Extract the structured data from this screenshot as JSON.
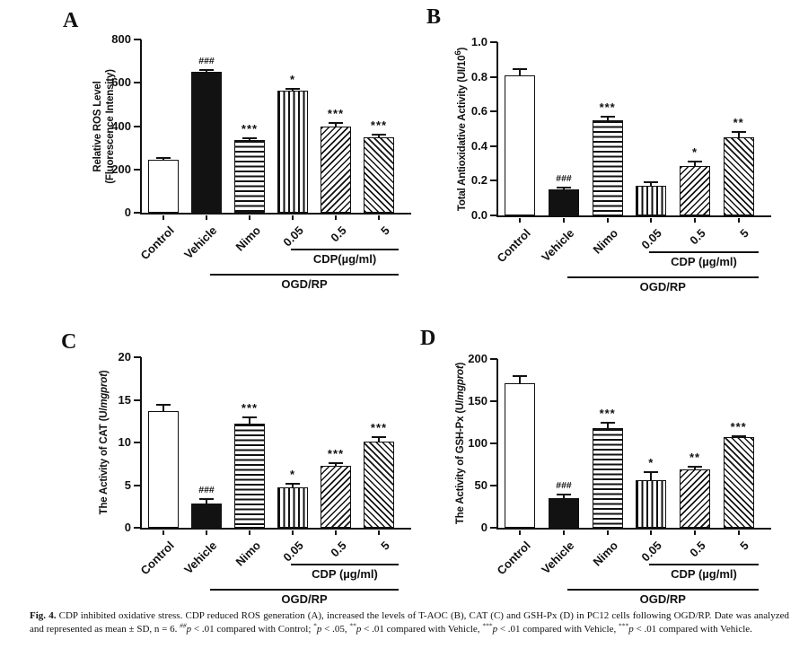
{
  "style": {
    "ink": "#111111",
    "background": "#ffffff"
  },
  "chart_data": [
    {
      "type": "bar",
      "panel": "A",
      "title": "",
      "xlabel": "",
      "ylabel_lines": [
        [
          {
            "t": "Relative ROS Level"
          }
        ],
        [
          {
            "t": "(Fluorescence Intensity)"
          }
        ]
      ],
      "ylim": [
        0,
        800
      ],
      "yticks": [
        0,
        200,
        400,
        600,
        800
      ],
      "ytick_labels": [
        "0",
        "200",
        "400",
        "600",
        "800"
      ],
      "categories": [
        "Control",
        "Vehicle",
        "Nimo",
        "0.05",
        "0.5",
        "5"
      ],
      "values": [
        243,
        652,
        334,
        562,
        396,
        350
      ],
      "errors": [
        10,
        8,
        10,
        12,
        20,
        10
      ],
      "annotations": [
        "",
        "###",
        "***",
        "*",
        "***",
        "***"
      ],
      "bar_patterns": [
        "plain",
        "solid",
        "hlines",
        "vlines",
        "diag-up",
        "diag-down"
      ],
      "group_lines": [
        {
          "label": "CDP(µg/ml)",
          "from": 3,
          "to": 5
        },
        {
          "label": "OGD/RP",
          "from": 1,
          "to": 5
        }
      ],
      "grid": false,
      "legend": "none"
    },
    {
      "type": "bar",
      "panel": "B",
      "title": "",
      "xlabel": "",
      "ylabel_lines": [
        [
          {
            "t": "Total Antioxidative Activity (UI/10"
          },
          {
            "t": "6",
            "sup": true
          },
          {
            "t": ")"
          }
        ]
      ],
      "ylim": [
        0,
        1.0
      ],
      "yticks": [
        0,
        0.2,
        0.4,
        0.6,
        0.8,
        1.0
      ],
      "ytick_labels": [
        "0.0",
        "0.2",
        "0.4",
        "0.6",
        "0.8",
        "1.0"
      ],
      "categories": [
        "Control",
        "Vehicle",
        "Nimo",
        "0.05",
        "0.5",
        "5"
      ],
      "values": [
        0.81,
        0.15,
        0.55,
        0.17,
        0.285,
        0.45
      ],
      "errors": [
        0.035,
        0.012,
        0.018,
        0.022,
        0.028,
        0.032
      ],
      "annotations": [
        "",
        "###",
        "***",
        "",
        "*",
        "**"
      ],
      "bar_patterns": [
        "plain",
        "solid",
        "hlines",
        "vlines",
        "diag-up",
        "diag-down"
      ],
      "group_lines": [
        {
          "label": "CDP (µg/ml)",
          "from": 3,
          "to": 5
        },
        {
          "label": "OGD/RP",
          "from": 1,
          "to": 5
        }
      ],
      "grid": false,
      "legend": "none"
    },
    {
      "type": "bar",
      "panel": "C",
      "title": "",
      "xlabel": "",
      "ylabel_lines": [
        [
          {
            "t": "The Activity of CAT (U/"
          },
          {
            "t": "mgprot",
            "i": true
          },
          {
            "t": ")"
          }
        ]
      ],
      "ylim": [
        0,
        20
      ],
      "yticks": [
        0,
        5,
        10,
        15,
        20
      ],
      "ytick_labels": [
        "0",
        "5",
        "10",
        "15",
        "20"
      ],
      "categories": [
        "Control",
        "Vehicle",
        "Nimo",
        "0.05",
        "0.5",
        "5"
      ],
      "values": [
        13.7,
        2.8,
        12.2,
        4.7,
        7.3,
        10.1
      ],
      "errors": [
        0.7,
        0.6,
        0.7,
        0.5,
        0.25,
        0.55
      ],
      "annotations": [
        "",
        "###",
        "***",
        "*",
        "***",
        "***"
      ],
      "bar_patterns": [
        "plain",
        "solid",
        "hlines",
        "vlines",
        "diag-up",
        "diag-down"
      ],
      "group_lines": [
        {
          "label": "CDP (µg/ml)",
          "from": 3,
          "to": 5
        },
        {
          "label": "OGD/RP",
          "from": 1,
          "to": 5
        }
      ],
      "grid": false,
      "legend": "none"
    },
    {
      "type": "bar",
      "panel": "D",
      "title": "",
      "xlabel": "",
      "ylabel_lines": [
        [
          {
            "t": "The Activity of GSH-Px (U/"
          },
          {
            "t": "mgprot",
            "i": true
          },
          {
            "t": ")"
          }
        ]
      ],
      "ylim": [
        0,
        200
      ],
      "yticks": [
        0,
        50,
        100,
        150,
        200
      ],
      "ytick_labels": [
        "0",
        "50",
        "100",
        "150",
        "200"
      ],
      "categories": [
        "Control",
        "Vehicle",
        "Nimo",
        "0.05",
        "0.5",
        "5"
      ],
      "values": [
        171,
        35,
        118,
        56,
        69,
        107
      ],
      "errors": [
        9,
        4,
        7,
        10,
        3,
        2
      ],
      "annotations": [
        "",
        "###",
        "***",
        "*",
        "**",
        "***"
      ],
      "bar_patterns": [
        "plain",
        "solid",
        "hlines",
        "vlines",
        "diag-up",
        "diag-down"
      ],
      "group_lines": [
        {
          "label": "CDP (µg/ml)",
          "from": 3,
          "to": 5
        },
        {
          "label": "OGD/RP",
          "from": 1,
          "to": 5
        }
      ],
      "grid": false,
      "legend": "none"
    }
  ],
  "caption": {
    "segments": [
      {
        "t": "Fig. 4.",
        "b": true
      },
      {
        "t": " CDP inhibited oxidative stress. CDP reduced ROS generation (A), increased the levels of T-AOC (B), CAT (C) and GSH-Px (D) in PC12 cells following OGD/RP. Date was analyzed and represented as mean ± SD, n = 6. "
      },
      {
        "t": "##",
        "sup": true,
        "i": true
      },
      {
        "t": "p",
        "i": true
      },
      {
        "t": " < .01 compared with Control; "
      },
      {
        "t": "*",
        "sup": true
      },
      {
        "t": "p",
        "i": true
      },
      {
        "t": " < .05, "
      },
      {
        "t": "**",
        "sup": true
      },
      {
        "t": "p",
        "i": true
      },
      {
        "t": " < .01 compared with Vehicle, "
      },
      {
        "t": "***",
        "sup": true
      },
      {
        "t": "p",
        "i": true
      },
      {
        "t": " < .01 compared with Vehicle, "
      },
      {
        "t": "***",
        "sup": true
      },
      {
        "t": "p",
        "i": true
      },
      {
        "t": " < .01 compared with Vehicle."
      }
    ]
  }
}
